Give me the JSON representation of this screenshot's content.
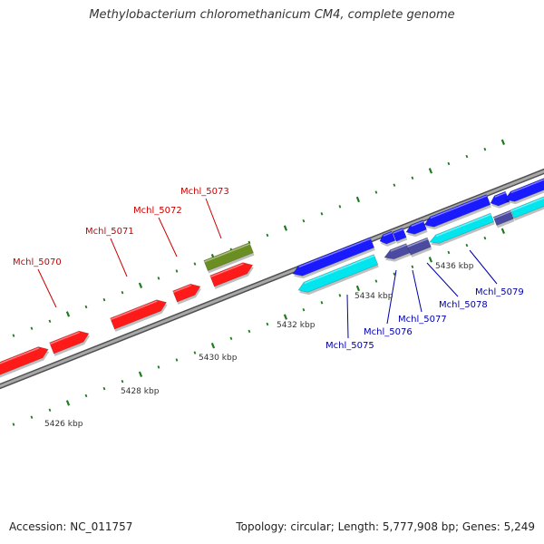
{
  "title": "Methylobacterium chloromethanicum CM4, complete genome",
  "footer": {
    "accession": "Accession: NC_011757",
    "summary": "Topology: circular; Length: 5,777,908 bp; Genes: 5,249"
  },
  "colors": {
    "forward_cds": "#ff1a1a",
    "other_feature": "#6b8e23",
    "reverse_cds": "#1a1aff",
    "reverse_cds_dark": "#4a4aa0",
    "cyan_feature": "#00e5ee",
    "backbone": "#808080",
    "tick": "#1e7a1e",
    "label_red": "#cc0000",
    "label_blue": "#0000aa"
  },
  "ruler_labels": [
    "5426 kbp",
    "5428 kbp",
    "5430 kbp",
    "5432 kbp",
    "5434 kbp",
    "5436 kbp"
  ],
  "gene_labels_top": [
    "Mchl_5070",
    "Mchl_5071",
    "Mchl_5072",
    "Mchl_5073"
  ],
  "gene_labels_bottom": [
    "Mchl_5075",
    "Mchl_5076",
    "Mchl_5077",
    "Mchl_5078",
    "Mchl_5079"
  ]
}
